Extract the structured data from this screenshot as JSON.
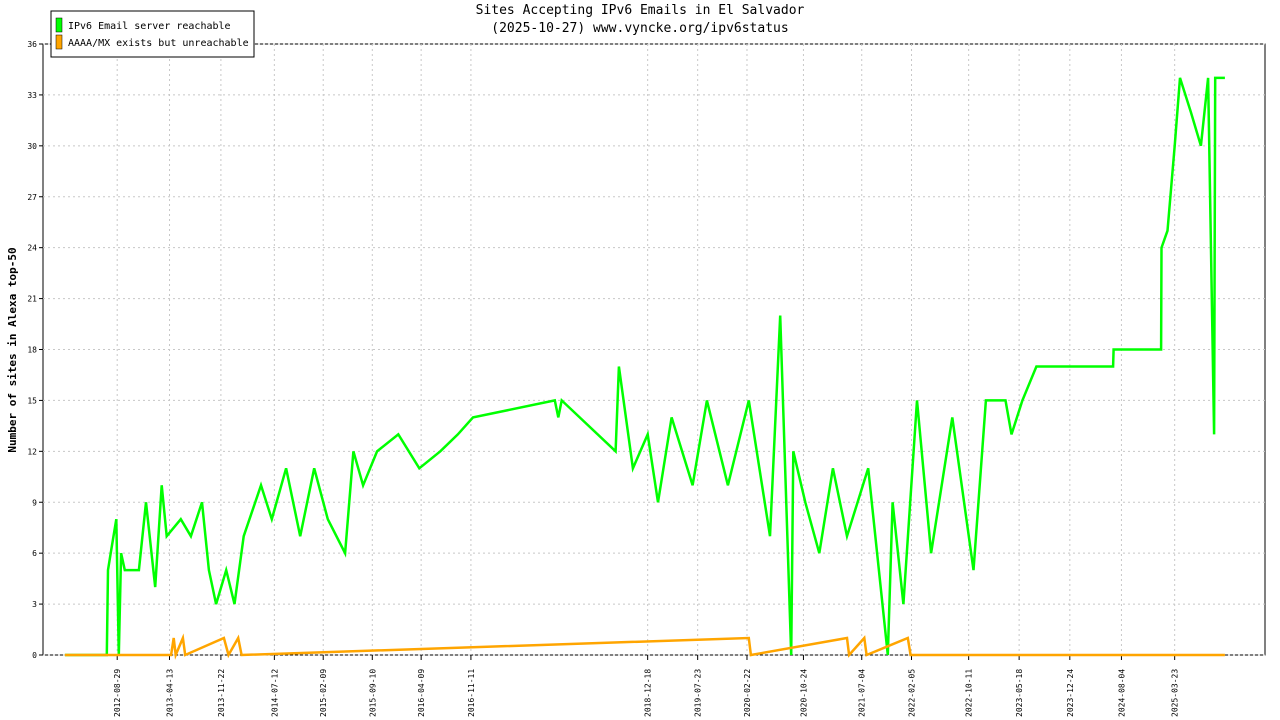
{
  "chart_data": {
    "type": "line",
    "title": "Sites Accepting IPv6 Emails in El Salvador",
    "subtitle": "(2025-10-27) www.vyncke.org/ipv6status",
    "y_label": "Number of sites in Alexa top-50",
    "xlim": [
      "2011-10-12",
      "2026-04-19"
    ],
    "xticks": [
      "2012-08-29",
      "2013-04-13",
      "2013-11-22",
      "2014-07-12",
      "2015-02-09",
      "2015-09-10",
      "2016-04-09",
      "2016-11-11",
      "2018-12-18",
      "2019-07-23",
      "2020-02-22",
      "2020-10-24",
      "2021-07-04",
      "2022-02-05",
      "2022-10-11",
      "2023-05-18",
      "2023-12-24",
      "2024-08-04",
      "2025-03-23"
    ],
    "ylim": [
      0,
      36
    ],
    "yticks": [
      0,
      3,
      6,
      9,
      12,
      15,
      18,
      21,
      24,
      27,
      30,
      33,
      36
    ],
    "grid": true,
    "legend": "top-left",
    "series": [
      {
        "name": "IPv6 Email server reachable",
        "color": "#00ff00",
        "x": [
          "2012-01-15",
          "2012-07-15",
          "2012-07-20",
          "2012-08-01",
          "2012-08-25",
          "2012-09-05",
          "2012-09-15",
          "2012-10-01",
          "2012-12-01",
          "2013-01-01",
          "2013-02-10",
          "2013-03-10",
          "2013-04-01",
          "2013-06-01",
          "2013-07-15",
          "2013-09-01",
          "2013-10-01",
          "2013-11-01",
          "2013-12-15",
          "2014-01-20",
          "2014-03-01",
          "2014-05-15",
          "2014-07-01",
          "2014-09-01",
          "2014-11-01",
          "2015-01-01",
          "2015-03-01",
          "2015-05-15",
          "2015-06-20",
          "2015-08-01",
          "2015-10-01",
          "2016-01-01",
          "2016-04-01",
          "2016-07-01",
          "2016-09-15",
          "2016-11-20",
          "2017-11-10",
          "2017-11-25",
          "2017-12-10",
          "2018-08-01",
          "2018-08-15",
          "2018-10-15",
          "2018-12-18",
          "2019-02-01",
          "2019-04-01",
          "2019-07-01",
          "2019-09-01",
          "2019-12-01",
          "2020-03-01",
          "2020-06-01",
          "2020-07-15",
          "2020-09-01",
          "2020-09-10",
          "2020-11-01",
          "2021-01-01",
          "2021-03-01",
          "2021-05-01",
          "2021-08-01",
          "2021-10-25",
          "2021-11-15",
          "2022-01-01",
          "2022-03-01",
          "2022-05-01",
          "2022-08-01",
          "2022-11-01",
          "2022-12-25",
          "2023-03-20",
          "2023-04-15",
          "2023-06-01",
          "2023-08-01",
          "2024-06-29",
          "2024-07-01",
          "2025-01-23",
          "2025-01-25",
          "2025-02-20",
          "2025-03-23",
          "2025-04-15",
          "2025-06-01",
          "2025-07-15",
          "2025-08-15",
          "2025-09-10",
          "2025-09-15",
          "2025-10-27"
        ],
        "values": [
          0,
          0,
          5,
          6,
          8,
          0,
          6,
          5,
          5,
          9,
          4,
          10,
          7,
          8,
          7,
          9,
          5,
          3,
          5,
          3,
          7,
          10,
          8,
          11,
          7,
          11,
          8,
          6,
          12,
          10,
          12,
          13,
          11,
          12,
          13,
          14,
          15,
          14,
          15,
          12,
          17,
          11,
          13,
          9,
          14,
          10,
          15,
          10,
          15,
          7,
          20,
          0,
          12,
          9,
          6,
          11,
          7,
          11,
          0,
          9,
          3,
          15,
          6,
          14,
          5,
          15,
          15,
          13,
          15,
          17,
          17,
          18,
          18,
          24,
          25,
          30,
          34,
          32,
          30,
          34,
          13,
          34,
          34
        ]
      },
      {
        "name": "AAAA/MX exists but unreachable",
        "color": "#ffa500",
        "x": [
          "2012-01-15",
          "2013-04-20",
          "2013-05-01",
          "2013-05-10",
          "2013-06-10",
          "2013-06-20",
          "2013-12-05",
          "2013-12-25",
          "2014-02-05",
          "2014-02-20",
          "2020-03-01",
          "2020-03-10",
          "2021-05-01",
          "2021-05-10",
          "2021-07-15",
          "2021-07-25",
          "2022-01-20",
          "2022-02-01",
          "2025-10-27"
        ],
        "values": [
          0,
          0,
          1,
          0,
          1,
          0,
          1,
          0,
          1,
          0,
          1,
          0,
          1,
          0,
          1,
          0,
          1,
          0,
          0
        ]
      }
    ]
  }
}
